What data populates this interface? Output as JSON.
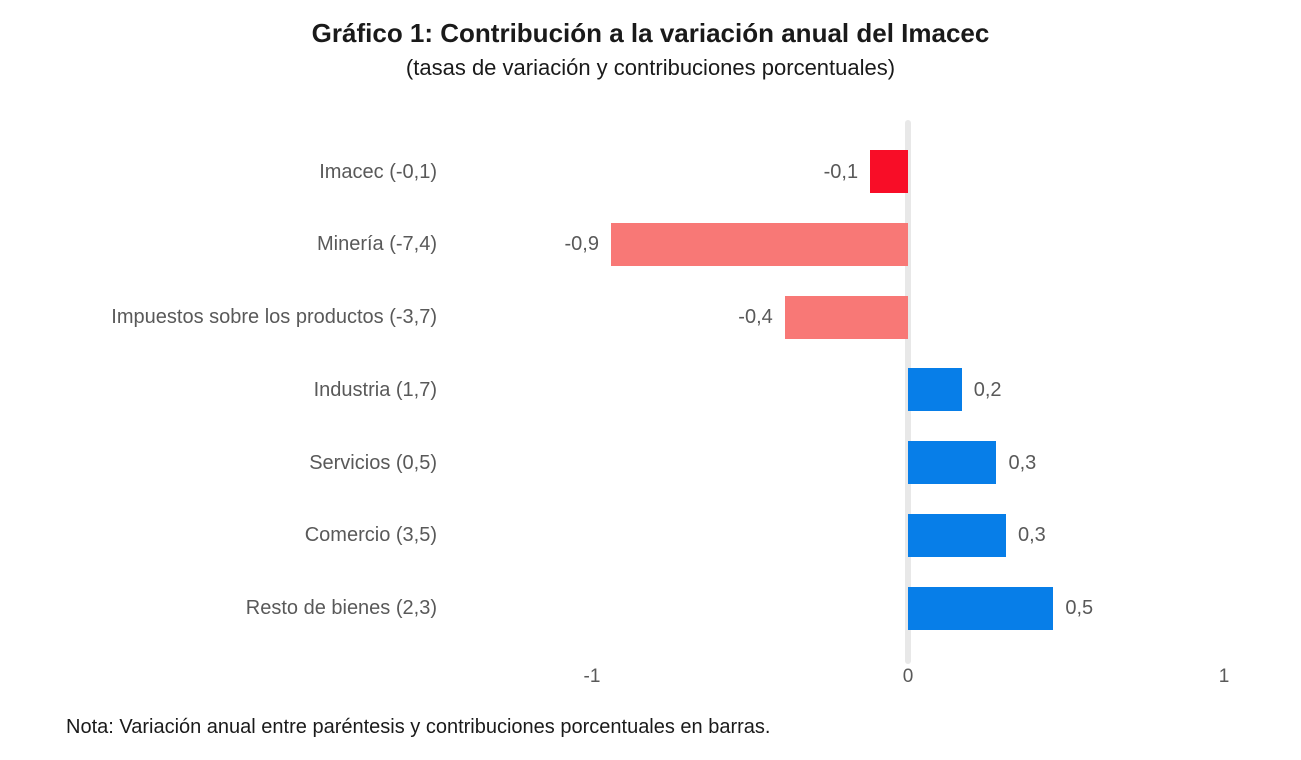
{
  "header": {
    "title": "Gráfico 1: Contribución a la variación anual del Imacec",
    "subtitle": "(tasas de variación y contribuciones porcentuales)"
  },
  "footer": {
    "note": "Nota: Variación anual entre paréntesis y contribuciones porcentuales en barras."
  },
  "colors": {
    "negative_highlight": "#F80D27",
    "negative": "#F87876",
    "positive": "#077EE8",
    "gridline": "#E8E8E8",
    "label_text": "#595959",
    "heading_text": "#1A1A1A"
  },
  "chart_data": {
    "type": "bar",
    "orientation": "horizontal",
    "title": "Gráfico 1: Contribución a la variación anual del Imacec",
    "subtitle": "(tasas de variación y contribuciones porcentuales)",
    "xlabel": "",
    "ylabel": "",
    "xlim": [
      -1,
      1
    ],
    "grid": false,
    "legend": false,
    "x_ticks": [
      {
        "value": -1,
        "label": "-1"
      },
      {
        "value": 0,
        "label": "0"
      },
      {
        "value": 1,
        "label": "1"
      }
    ],
    "categories": [
      "Imacec (-0,1)",
      "Minería (-7,4)",
      "Impuestos sobre los productos (-3,7)",
      "Industria (1,7)",
      "Servicios (0,5)",
      "Comercio (3,5)",
      "Resto de bienes (2,3)"
    ],
    "values": [
      -0.1,
      -0.9,
      -0.4,
      0.2,
      0.3,
      0.3,
      0.5
    ],
    "items": [
      {
        "category": "Imacec (-0,1)",
        "annual_variation": -0.1,
        "contribution": -0.1,
        "value_label": "-0,1",
        "bar_estimate": -0.12,
        "color": "#F80D27"
      },
      {
        "category": "Minería (-7,4)",
        "annual_variation": -7.4,
        "contribution": -0.9,
        "value_label": "-0,9",
        "bar_estimate": -0.94,
        "color": "#F87876"
      },
      {
        "category": "Impuestos sobre los productos (-3,7)",
        "annual_variation": -3.7,
        "contribution": -0.4,
        "value_label": "-0,4",
        "bar_estimate": -0.39,
        "color": "#F87876"
      },
      {
        "category": "Industria (1,7)",
        "annual_variation": 1.7,
        "contribution": 0.2,
        "value_label": "0,2",
        "bar_estimate": 0.17,
        "color": "#077EE8"
      },
      {
        "category": "Servicios (0,5)",
        "annual_variation": 0.5,
        "contribution": 0.3,
        "value_label": "0,3",
        "bar_estimate": 0.28,
        "color": "#077EE8"
      },
      {
        "category": "Comercio (3,5)",
        "annual_variation": 3.5,
        "contribution": 0.3,
        "value_label": "0,3",
        "bar_estimate": 0.31,
        "color": "#077EE8"
      },
      {
        "category": "Resto de bienes (2,3)",
        "annual_variation": 2.3,
        "contribution": 0.5,
        "value_label": "0,5",
        "bar_estimate": 0.46,
        "color": "#077EE8"
      }
    ]
  }
}
